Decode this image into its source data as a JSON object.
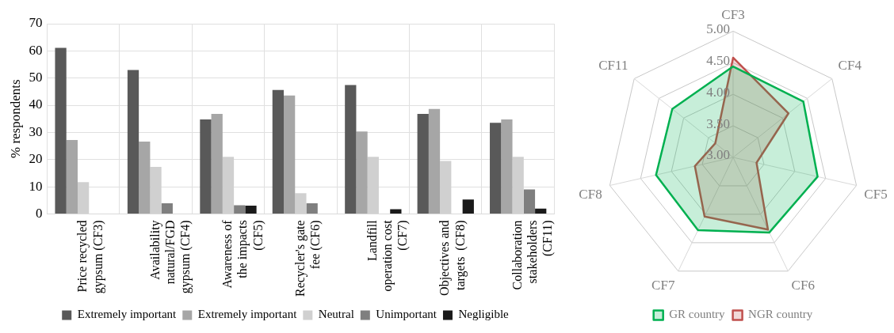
{
  "chart_data": [
    {
      "type": "bar",
      "ylabel": "% respondents",
      "categories": [
        "Price recycled gypsum (CF3)",
        "Availability natural/FGD gypsum (CF4)",
        "Awareness of the impacts (CF5)",
        "Recycler's gate fee (CF6)",
        "Landfill operation cost (CF7)",
        "Objectives and targets  (CF8)",
        "Collaboration stakeholders (CF11)"
      ],
      "series": [
        {
          "name": "Extremely important",
          "color": "#595959",
          "values": [
            61.1,
            53,
            34.8,
            45.6,
            47.4,
            36.8,
            33.5
          ]
        },
        {
          "name": "Extremely important",
          "color": "#a6a6a6",
          "values": [
            27.2,
            26.6,
            36.8,
            43.6,
            30.3,
            38.6,
            34.8
          ]
        },
        {
          "name": "Neutral",
          "color": "#d0d0d0",
          "values": [
            11.7,
            17.3,
            21,
            7.6,
            21,
            19.5,
            21
          ]
        },
        {
          "name": "Unimportant",
          "color": "#7f7f7f",
          "values": [
            0,
            3.9,
            3.2,
            3.9,
            0,
            0,
            9
          ]
        },
        {
          "name": "Negligible",
          "color": "#1a1a1a",
          "values": [
            0,
            0,
            3,
            0,
            1.7,
            5.3,
            1.9
          ]
        }
      ],
      "ylim": [
        0,
        70
      ],
      "yticks": [
        0,
        10,
        20,
        30,
        40,
        50,
        60,
        70
      ],
      "grid": true,
      "legend": "bottom"
    },
    {
      "type": "radar",
      "categories": [
        "CF3",
        "CF4",
        "CF5",
        "CF6",
        "CF7",
        "CF8",
        "CF11"
      ],
      "series": [
        {
          "name": "GR country",
          "color": "#00b050",
          "values": [
            4.44,
            4.42,
            4.37,
            4.32,
            4.28,
            4.25,
            4.23
          ]
        },
        {
          "name": "NGR country",
          "color": "#c0504d",
          "values": [
            4.58,
            4.12,
            3.38,
            4.27,
            4.04,
            3.62,
            3.36
          ]
        }
      ],
      "ylim": [
        3,
        5
      ],
      "yticks": [
        {
          "value": 3,
          "label": "3.00"
        },
        {
          "value": 3.5,
          "label": "3.50"
        },
        {
          "value": 4,
          "label": "4.00"
        },
        {
          "value": 4.5,
          "label": "4.50"
        },
        {
          "value": 5,
          "label": "5.00"
        }
      ],
      "grid": true,
      "legend": "bottom"
    }
  ]
}
